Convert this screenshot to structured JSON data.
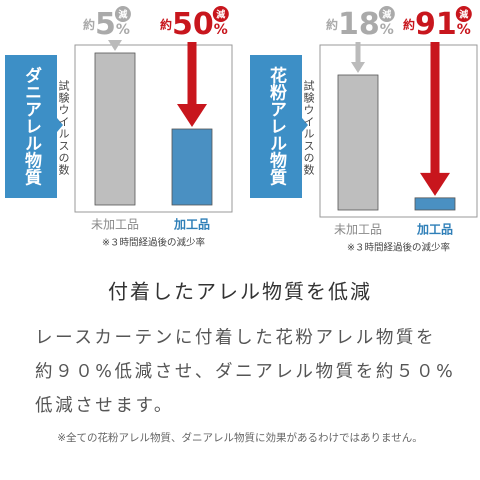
{
  "panels": [
    {
      "label": "ダニアレル物質",
      "axis_label": "試験ウイルスの数",
      "reductions": [
        {
          "prefix": "約",
          "value": "5",
          "unit": "%",
          "badge": "減"
        },
        {
          "prefix": "約",
          "value": "50",
          "unit": "%",
          "badge": "減"
        }
      ],
      "categories": [
        "未加工品",
        "加工品"
      ],
      "values": [
        100,
        50
      ],
      "note": "※３時間経過後の減少率"
    },
    {
      "label": "花粉アレル物質",
      "axis_label": "試験ウイルスの数",
      "reductions": [
        {
          "prefix": "約",
          "value": "18",
          "unit": "%",
          "badge": "減"
        },
        {
          "prefix": "約",
          "value": "91",
          "unit": "%",
          "badge": "減"
        }
      ],
      "categories": [
        "未加工品",
        "加工品"
      ],
      "values": [
        100,
        9
      ],
      "note": "※３時間経過後の減少率"
    }
  ],
  "title": "付着したアレル物質を低減",
  "body": [
    "レースカーテンに付着した花粉アレル物質を",
    "約９０%低減させ、ダニアレル物質を約５０%",
    "低減させます。"
  ],
  "footnote": "※全ての花粉アレル物質、ダニアレル物質に効果があるわけではありません。"
}
